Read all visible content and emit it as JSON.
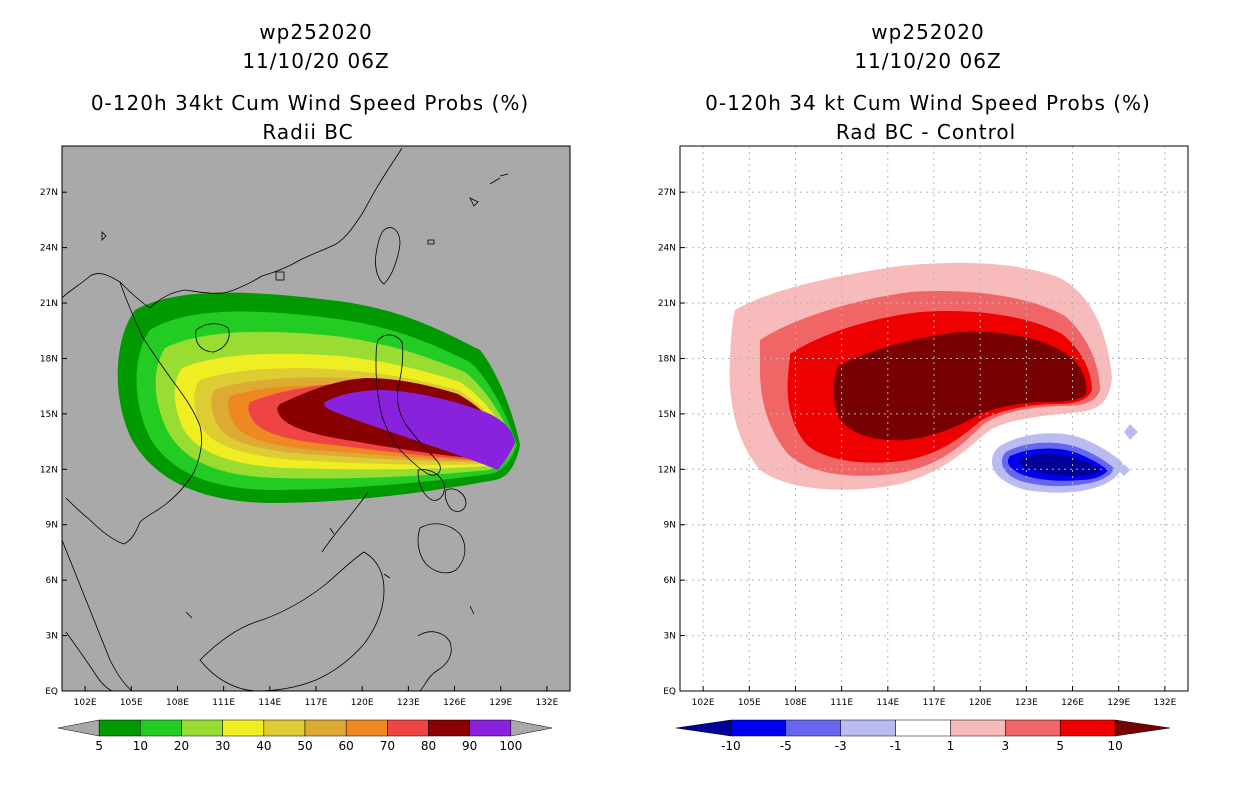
{
  "chart_data": [
    {
      "type": "heatmap",
      "title_lines": [
        "wp252020",
        "11/10/20 06Z",
        "0-120h 34kt Cum Wind Speed Probs (%)",
        "Radii BC"
      ],
      "x_ticks": [
        "102E",
        "105E",
        "108E",
        "111E",
        "114E",
        "117E",
        "120E",
        "123E",
        "126E",
        "129E",
        "132E"
      ],
      "y_ticks": [
        "EQ",
        "3N",
        "6N",
        "9N",
        "12N",
        "15N",
        "18N",
        "21N",
        "24N",
        "27N"
      ],
      "xlim": [
        100.5,
        133.5
      ],
      "ylim": [
        0,
        29.5
      ],
      "background": "#a9a9a9",
      "colorbar": {
        "labels": [
          "5",
          "10",
          "20",
          "30",
          "40",
          "50",
          "60",
          "70",
          "80",
          "90",
          "100"
        ],
        "colors": [
          "#009900",
          "#22cc22",
          "#99dd33",
          "#eeee22",
          "#ddcc33",
          "#ddaa33",
          "#ee8822",
          "#ee4444",
          "#880000",
          "#8822dd"
        ],
        "under_color": "#a9a9a9",
        "over_color": "#a9a9a9"
      }
    },
    {
      "type": "heatmap",
      "title_lines": [
        "wp252020",
        "11/10/20 06Z",
        "0-120h 34 kt Cum Wind Speed Probs (%)",
        "Rad BC - Control"
      ],
      "x_ticks": [
        "102E",
        "105E",
        "108E",
        "111E",
        "114E",
        "117E",
        "120E",
        "123E",
        "126E",
        "129E",
        "132E"
      ],
      "y_ticks": [
        "EQ",
        "3N",
        "6N",
        "9N",
        "12N",
        "15N",
        "18N",
        "21N",
        "24N",
        "27N"
      ],
      "xlim": [
        100.5,
        133.5
      ],
      "ylim": [
        0,
        29.5
      ],
      "background": "#ffffff",
      "colorbar": {
        "labels": [
          "-10",
          "-5",
          "-3",
          "-1",
          "1",
          "3",
          "5",
          "10"
        ],
        "colors": [
          "#0000ee",
          "#6666ee",
          "#bbbbf4",
          "#ffffff",
          "#f7bbbb",
          "#f06666",
          "#ee0000"
        ],
        "under_color": "#000099",
        "over_color": "#770000"
      }
    }
  ]
}
